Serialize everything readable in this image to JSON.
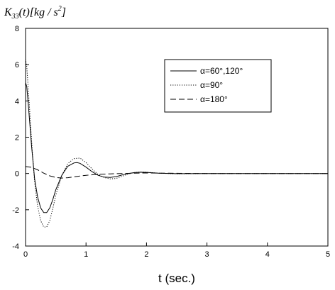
{
  "chart_data": {
    "type": "line",
    "ylabel": "K33(t)[kg/s2]",
    "ylabel_parts": {
      "main": "K",
      "sub": "33",
      "mid": "(t)[kg / s",
      "sup": "2",
      "end": "]"
    },
    "xlabel": "t (sec.)",
    "xlim": [
      0,
      5
    ],
    "ylim": [
      -4,
      8
    ],
    "xticks": [
      0,
      1,
      2,
      3,
      4,
      5
    ],
    "yticks": [
      -4,
      -2,
      0,
      2,
      4,
      6,
      8
    ],
    "grid": false,
    "legend_position": "top-right",
    "series": [
      {
        "name": "α=60°,120°",
        "dash": "solid",
        "x": [
          0,
          0.02,
          0.05,
          0.1,
          0.15,
          0.2,
          0.25,
          0.3,
          0.35,
          0.4,
          0.45,
          0.5,
          0.6,
          0.7,
          0.8,
          0.85,
          0.9,
          1.0,
          1.1,
          1.2,
          1.3,
          1.4,
          1.5,
          1.6,
          1.7,
          1.8,
          1.9,
          2.0,
          2.2,
          2.5,
          3.0,
          3.5,
          4.0,
          4.5,
          5.0
        ],
        "y": [
          5.0,
          4.8,
          3.6,
          1.5,
          -0.3,
          -1.3,
          -1.9,
          -2.15,
          -2.15,
          -1.9,
          -1.45,
          -0.9,
          -0.1,
          0.4,
          0.58,
          0.6,
          0.56,
          0.35,
          0.1,
          -0.1,
          -0.2,
          -0.22,
          -0.17,
          -0.08,
          0.0,
          0.05,
          0.07,
          0.06,
          0.02,
          -0.01,
          0.0,
          0.0,
          0.0,
          0.0,
          0.0
        ]
      },
      {
        "name": "α=90°",
        "dash": "dotted",
        "x": [
          0,
          0.02,
          0.05,
          0.1,
          0.15,
          0.2,
          0.25,
          0.3,
          0.35,
          0.4,
          0.45,
          0.5,
          0.6,
          0.7,
          0.8,
          0.9,
          1.0,
          1.1,
          1.2,
          1.3,
          1.4,
          1.5,
          1.6,
          1.7,
          1.8,
          1.9,
          2.0,
          2.2,
          2.5,
          3.0,
          3.5,
          4.0,
          4.5,
          5.0
        ],
        "y": [
          6.3,
          5.9,
          4.4,
          1.8,
          -0.5,
          -1.8,
          -2.6,
          -2.95,
          -2.95,
          -2.6,
          -1.95,
          -1.2,
          -0.1,
          0.55,
          0.82,
          0.85,
          0.6,
          0.25,
          -0.05,
          -0.22,
          -0.3,
          -0.27,
          -0.15,
          -0.03,
          0.05,
          0.08,
          0.07,
          0.02,
          -0.02,
          0.0,
          0.0,
          0.0,
          0.0,
          0.0
        ]
      },
      {
        "name": "α=180°",
        "dash": "dashed",
        "x": [
          0,
          0.1,
          0.2,
          0.3,
          0.4,
          0.5,
          0.6,
          0.7,
          0.8,
          0.9,
          1.0,
          1.2,
          1.4,
          1.6,
          1.8,
          2.0,
          2.2,
          2.5,
          3.0,
          3.5,
          4.0,
          4.5,
          5.0
        ],
        "y": [
          0.38,
          0.34,
          0.2,
          0.02,
          -0.13,
          -0.22,
          -0.25,
          -0.23,
          -0.19,
          -0.14,
          -0.1,
          -0.05,
          -0.02,
          0.0,
          0.02,
          0.03,
          0.02,
          0.01,
          0.0,
          0.0,
          0.0,
          0.0,
          0.0
        ]
      }
    ]
  }
}
